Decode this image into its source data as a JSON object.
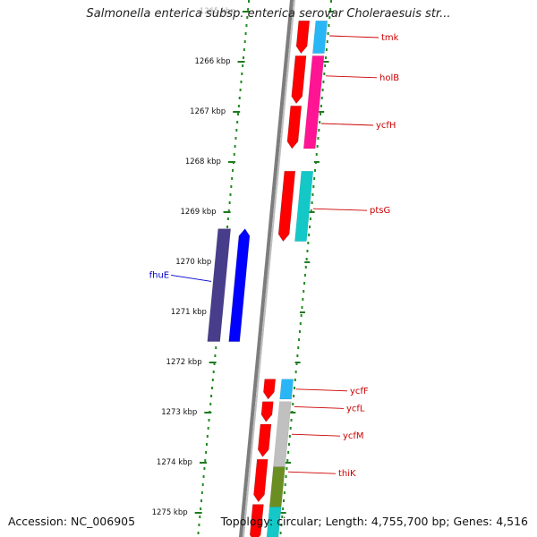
{
  "title": "Salmonella enterica subsp. enterica serovar Choleraesuis str...",
  "footer": {
    "accession": "Accession: NC_006905",
    "summary": "Topology: circular; Length: 4,755,700 bp; Genes: 4,516"
  },
  "colors": {
    "scale_dots": "#228B22",
    "scale_ticks": "#1f7a1f",
    "backbone": "#7d7d7d",
    "forward_label": "#cc0000",
    "reverse_label": "#0000cc"
  },
  "chart_data": {
    "type": "linear-genome-map",
    "axis_unit": "kbp",
    "ticks": [
      {
        "pos": 1265,
        "label": "1265 kbp"
      },
      {
        "pos": 1266,
        "label": "1266 kbp"
      },
      {
        "pos": 1267,
        "label": "1267 kbp"
      },
      {
        "pos": 1268,
        "label": "1268 kbp"
      },
      {
        "pos": 1269,
        "label": "1269 kbp"
      },
      {
        "pos": 1270,
        "label": "1270 kbp"
      },
      {
        "pos": 1271,
        "label": "1271 kbp"
      },
      {
        "pos": 1272,
        "label": "1272 kbp"
      },
      {
        "pos": 1273,
        "label": "1273 kbp"
      },
      {
        "pos": 1274,
        "label": "1274 kbp"
      },
      {
        "pos": 1275,
        "label": "1275 kbp"
      }
    ],
    "forward_genes": [
      {
        "name": "tmk",
        "start": 1265.2,
        "end": 1265.85,
        "color": "#ff0000",
        "label_pos": 1265.5
      },
      {
        "name": "holB",
        "start": 1265.9,
        "end": 1266.85,
        "color": "#ff0000",
        "label_pos": 1266.3
      },
      {
        "name": "ycfH",
        "start": 1266.9,
        "end": 1267.75,
        "color": "#ff0000",
        "label_pos": 1267.25
      },
      {
        "name": "ptsG",
        "start": 1268.2,
        "end": 1269.6,
        "color": "#ff0000",
        "label_pos": 1268.95
      },
      {
        "name": "ycfF",
        "start": 1272.35,
        "end": 1272.75,
        "color": "#ff0000",
        "label_pos": 1272.55
      },
      {
        "name": "ycfL",
        "start": 1272.8,
        "end": 1273.2,
        "color": "#ff0000",
        "label_pos": 1272.9
      },
      {
        "name": "ycfM",
        "start": 1273.25,
        "end": 1273.9,
        "color": "#ff0000",
        "label_pos": 1273.45
      },
      {
        "name": "thiK",
        "start": 1273.95,
        "end": 1274.8,
        "color": "#ff0000",
        "label_pos": 1274.2
      },
      {
        "name": "",
        "start": 1274.85,
        "end": 1275.6,
        "color": "#ff0000"
      }
    ],
    "forward_features": [
      {
        "start": 1265.2,
        "end": 1265.85,
        "color": "#29b6f6"
      },
      {
        "start": 1265.9,
        "end": 1267.75,
        "color": "#ff1493"
      },
      {
        "start": 1268.2,
        "end": 1269.6,
        "color": "#14c8c8"
      },
      {
        "start": 1272.35,
        "end": 1272.75,
        "color": "#29b6f6"
      },
      {
        "start": 1272.8,
        "end": 1274.1,
        "color": "#c0c0c0"
      },
      {
        "start": 1274.1,
        "end": 1274.9,
        "color": "#6b8e23"
      },
      {
        "start": 1274.9,
        "end": 1275.6,
        "color": "#14c8c8"
      }
    ],
    "reverse_genes": [
      {
        "name": "fhuE",
        "start": 1269.35,
        "end": 1271.6,
        "color": "#0000ff",
        "label_pos": 1270.4
      }
    ],
    "reverse_features": [
      {
        "start": 1269.35,
        "end": 1271.6,
        "color": "#483d8b"
      }
    ]
  }
}
